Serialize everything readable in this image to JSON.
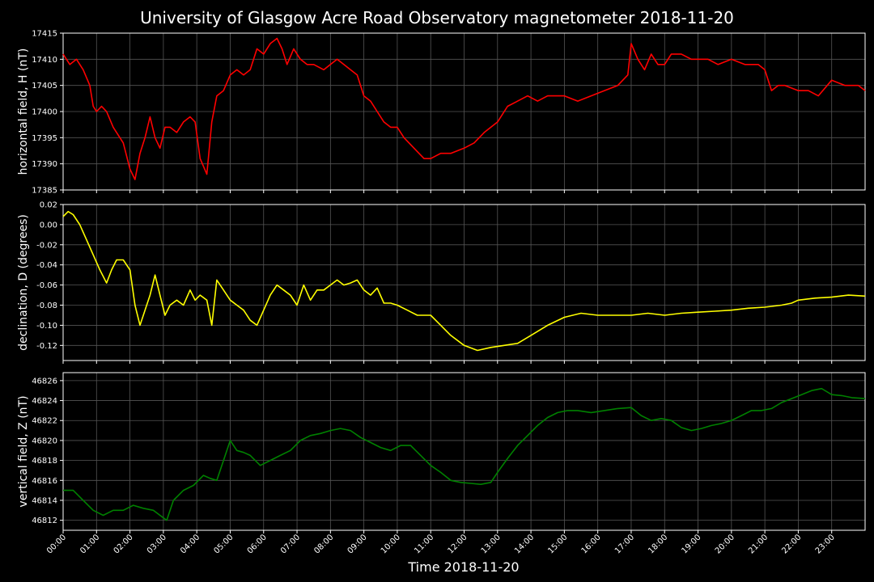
{
  "title": "University of Glasgow Acre Road Observatory magnetometer 2018-11-20",
  "xlabel": "Time 2018-11-20",
  "colors": {
    "background": "#000000",
    "grid": "#555555",
    "axis": "#ffffff",
    "text": "#ffffff"
  },
  "chart_data": [
    {
      "type": "line",
      "ylabel": "horizontal field, H (nT)",
      "ylim": [
        17385,
        17415
      ],
      "yticks": [
        "17385",
        "17390",
        "17395",
        "17400",
        "17405",
        "17410",
        "17415"
      ],
      "ytick_values": [
        17385,
        17390,
        17395,
        17400,
        17405,
        17410,
        17415
      ],
      "grid": true,
      "series": [
        {
          "color": "#ff0000",
          "x": [
            0,
            0.2,
            0.4,
            0.6,
            0.8,
            0.9,
            1,
            1.15,
            1.3,
            1.5,
            1.8,
            2,
            2.15,
            2.3,
            2.45,
            2.6,
            2.75,
            2.9,
            3.05,
            3.2,
            3.4,
            3.6,
            3.8,
            3.95,
            4.1,
            4.3,
            4.45,
            4.6,
            4.8,
            5,
            5.2,
            5.4,
            5.6,
            5.8,
            6,
            6.2,
            6.4,
            6.55,
            6.7,
            6.9,
            7.1,
            7.3,
            7.5,
            7.8,
            8,
            8.2,
            8.4,
            8.6,
            8.8,
            9,
            9.2,
            9.4,
            9.6,
            9.8,
            10,
            10.2,
            10.5,
            10.8,
            11,
            11.3,
            11.6,
            12,
            12.3,
            12.6,
            13,
            13.3,
            13.6,
            13.9,
            14.2,
            14.5,
            14.8,
            15,
            15.4,
            15.8,
            16.2,
            16.6,
            16.9,
            17,
            17.2,
            17.4,
            17.6,
            17.8,
            18,
            18.2,
            18.5,
            18.8,
            19,
            19.3,
            19.6,
            20,
            20.4,
            20.8,
            21,
            21.2,
            21.4,
            21.6,
            22,
            22.3,
            22.6,
            23,
            23.4,
            23.8,
            24
          ],
          "y": [
            17411,
            17409,
            17410,
            17408,
            17405,
            17401,
            17400,
            17401,
            17400,
            17397,
            17394,
            17389,
            17387,
            17392,
            17395,
            17399,
            17395,
            17393,
            17397,
            17397,
            17396,
            17398,
            17399,
            17398,
            17391,
            17388,
            17398,
            17403,
            17404,
            17407,
            17408,
            17407,
            17408,
            17412,
            17411,
            17413,
            17414,
            17412,
            17409,
            17412,
            17410,
            17409,
            17409,
            17408,
            17409,
            17410,
            17409,
            17408,
            17407,
            17403,
            17402,
            17400,
            17398,
            17397,
            17397,
            17395,
            17393,
            17391,
            17391,
            17392,
            17392,
            17393,
            17394,
            17396,
            17398,
            17401,
            17402,
            17403,
            17402,
            17403,
            17403,
            17403,
            17402,
            17403,
            17404,
            17405,
            17407,
            17413,
            17410,
            17408,
            17411,
            17409,
            17409,
            17411,
            17411,
            17410,
            17410,
            17410,
            17409,
            17410,
            17409,
            17409,
            17408,
            17404,
            17405,
            17405,
            17404,
            17404,
            17403,
            17406,
            17405,
            17405,
            17404
          ]
        }
      ]
    },
    {
      "type": "line",
      "ylabel": "declination, D (degrees)",
      "ylim": [
        -0.135,
        0.02
      ],
      "yticks": [
        "0.02",
        "0.00",
        "-0.02",
        "-0.04",
        "-0.06",
        "-0.08",
        "-0.10",
        "-0.12"
      ],
      "ytick_values": [
        0.02,
        0,
        -0.02,
        -0.04,
        -0.06,
        -0.08,
        -0.1,
        -0.12
      ],
      "grid": true,
      "series": [
        {
          "color": "#ffff00",
          "x": [
            0,
            0.15,
            0.3,
            0.5,
            0.7,
            0.9,
            1.1,
            1.3,
            1.45,
            1.6,
            1.8,
            2,
            2.15,
            2.3,
            2.45,
            2.6,
            2.75,
            2.9,
            3.05,
            3.2,
            3.4,
            3.6,
            3.8,
            3.95,
            4.1,
            4.3,
            4.45,
            4.6,
            4.8,
            5,
            5.2,
            5.4,
            5.6,
            5.8,
            6,
            6.2,
            6.4,
            6.6,
            6.8,
            7,
            7.2,
            7.4,
            7.6,
            7.8,
            8,
            8.2,
            8.4,
            8.6,
            8.8,
            9,
            9.2,
            9.4,
            9.6,
            9.8,
            10,
            10.3,
            10.6,
            11,
            11.3,
            11.6,
            12,
            12.4,
            12.8,
            13.2,
            13.6,
            14,
            14.5,
            15,
            15.5,
            16,
            16.5,
            17,
            17.5,
            18,
            18.5,
            19,
            19.5,
            20,
            20.5,
            21,
            21.5,
            21.8,
            22,
            22.5,
            23,
            23.5,
            24
          ],
          "y": [
            0.008,
            0.013,
            0.01,
            0,
            -0.015,
            -0.03,
            -0.045,
            -0.058,
            -0.045,
            -0.035,
            -0.035,
            -0.045,
            -0.08,
            -0.1,
            -0.085,
            -0.07,
            -0.05,
            -0.07,
            -0.09,
            -0.08,
            -0.075,
            -0.08,
            -0.065,
            -0.075,
            -0.07,
            -0.075,
            -0.1,
            -0.055,
            -0.065,
            -0.075,
            -0.08,
            -0.085,
            -0.095,
            -0.1,
            -0.085,
            -0.07,
            -0.06,
            -0.065,
            -0.07,
            -0.08,
            -0.06,
            -0.075,
            -0.065,
            -0.065,
            -0.06,
            -0.055,
            -0.06,
            -0.058,
            -0.055,
            -0.065,
            -0.07,
            -0.063,
            -0.078,
            -0.078,
            -0.08,
            -0.085,
            -0.09,
            -0.09,
            -0.1,
            -0.11,
            -0.12,
            -0.125,
            -0.122,
            -0.12,
            -0.118,
            -0.11,
            -0.1,
            -0.092,
            -0.088,
            -0.09,
            -0.09,
            -0.09,
            -0.088,
            -0.09,
            -0.088,
            -0.087,
            -0.086,
            -0.085,
            -0.083,
            -0.082,
            -0.08,
            -0.078,
            -0.075,
            -0.073,
            -0.072,
            -0.07,
            -0.071
          ]
        }
      ]
    },
    {
      "type": "line",
      "ylabel": "vertical field, Z (nT)",
      "ylim": [
        46811,
        46826.8
      ],
      "yticks": [
        "46812",
        "46814",
        "46816",
        "46818",
        "46820",
        "46822",
        "46824",
        "46826"
      ],
      "ytick_values": [
        46812,
        46814,
        46816,
        46818,
        46820,
        46822,
        46824,
        46826
      ],
      "grid": true,
      "series": [
        {
          "color": "#008000",
          "x": [
            0,
            0.3,
            0.6,
            0.9,
            1.2,
            1.5,
            1.8,
            2.1,
            2.4,
            2.7,
            2.9,
            3.1,
            3.3,
            3.6,
            3.9,
            4.2,
            4.4,
            4.6,
            4.8,
            5,
            5.2,
            5.4,
            5.6,
            5.9,
            6.2,
            6.5,
            6.8,
            7.1,
            7.4,
            7.7,
            8,
            8.3,
            8.6,
            8.9,
            9.2,
            9.5,
            9.8,
            10.1,
            10.4,
            10.7,
            11,
            11.3,
            11.6,
            11.9,
            12.2,
            12.5,
            12.8,
            13,
            13.3,
            13.6,
            13.9,
            14.2,
            14.5,
            14.8,
            15.1,
            15.4,
            15.8,
            16.2,
            16.6,
            17,
            17.3,
            17.6,
            17.9,
            18.2,
            18.5,
            18.8,
            19.1,
            19.4,
            19.7,
            20,
            20.3,
            20.6,
            20.9,
            21.2,
            21.5,
            21.8,
            22.1,
            22.4,
            22.7,
            23,
            23.3,
            23.6,
            24
          ],
          "y": [
            46815,
            46815,
            46814,
            46813,
            46812.5,
            46813,
            46813,
            46813.5,
            46813.2,
            46813,
            46812.5,
            46812,
            46814,
            46815,
            46815.5,
            46816.5,
            46816.2,
            46816,
            46818,
            46820,
            46819,
            46818.8,
            46818.5,
            46817.5,
            46818,
            46818.5,
            46819,
            46820,
            46820.5,
            46820.7,
            46821,
            46821.2,
            46821,
            46820.3,
            46819.8,
            46819.3,
            46819,
            46819.5,
            46819.5,
            46818.5,
            46817.5,
            46816.8,
            46816,
            46815.8,
            46815.7,
            46815.6,
            46815.8,
            46816.8,
            46818.2,
            46819.5,
            46820.5,
            46821.5,
            46822.3,
            46822.8,
            46823,
            46823,
            46822.8,
            46823,
            46823.2,
            46823.3,
            46822.5,
            46822,
            46822.2,
            46822,
            46821.3,
            46821,
            46821.2,
            46821.5,
            46821.7,
            46822,
            46822.5,
            46823,
            46823,
            46823.2,
            46823.8,
            46824.2,
            46824.6,
            46825,
            46825.2,
            46824.6,
            46824.5,
            46824.3,
            46824.2
          ]
        }
      ]
    }
  ],
  "x_tick_labels": [
    "00:00",
    "01:00",
    "02:00",
    "03:00",
    "04:00",
    "05:00",
    "06:00",
    "07:00",
    "08:00",
    "09:00",
    "10:00",
    "11:00",
    "12:00",
    "13:00",
    "14:00",
    "15:00",
    "16:00",
    "17:00",
    "18:00",
    "19:00",
    "20:00",
    "21:00",
    "22:00",
    "23:00"
  ],
  "x_range_hours": [
    0,
    24
  ]
}
